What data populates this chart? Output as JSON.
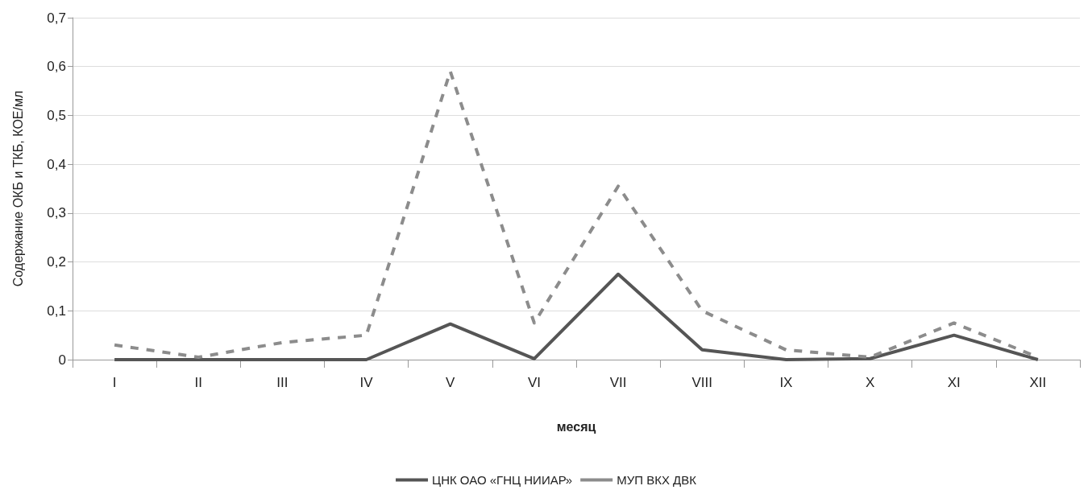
{
  "chart_data": {
    "type": "line",
    "xlabel": "месяц",
    "ylabel": "Содержание ОКБ и ТКБ, КОЕ/мл",
    "categories": [
      "I",
      "II",
      "III",
      "IV",
      "V",
      "VI",
      "VII",
      "VIII",
      "IX",
      "X",
      "XI",
      "XII"
    ],
    "series": [
      {
        "name": "ЦНК ОАО «ГНЦ НИИАР»",
        "color": "#555555",
        "line_style": "solid",
        "values": [
          0,
          0,
          0,
          0,
          0.073,
          0.002,
          0.175,
          0.02,
          0,
          0.002,
          0.05,
          0
        ]
      },
      {
        "name": "МУП ВКХ ДВК",
        "color": "#8c8c8c",
        "line_style": "dashed",
        "values": [
          0.03,
          0.005,
          0.035,
          0.05,
          0.59,
          0.075,
          0.355,
          0.1,
          0.02,
          0.005,
          0.075,
          0.005
        ]
      }
    ],
    "ylim": [
      0,
      0.7
    ],
    "yticks": [
      0,
      {
        "value": 0.1,
        "label": "0,1"
      },
      {
        "value": 0.2,
        "label": "0,2"
      },
      {
        "value": 0.3,
        "label": "0,3"
      },
      {
        "value": 0.4,
        "label": "0,4"
      },
      {
        "value": 0.5,
        "label": "0,5"
      },
      {
        "value": 0.6,
        "label": "0,6"
      },
      {
        "value": 0.7,
        "label": "0,7"
      }
    ],
    "grid": "y",
    "legend": "bottom",
    "marker": "none"
  }
}
